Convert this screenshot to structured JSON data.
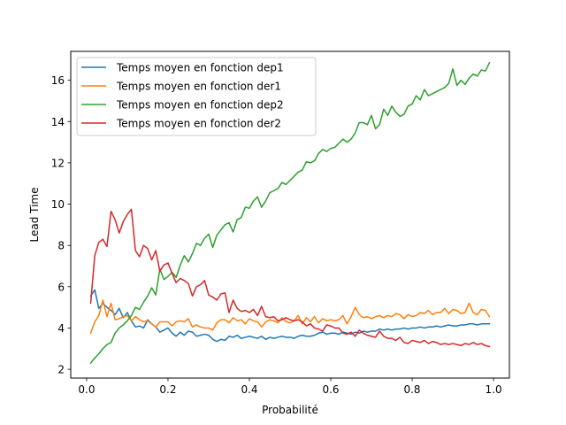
{
  "chart_data": {
    "type": "line",
    "xlabel": "Probabilité",
    "ylabel": "Lead Time",
    "xlim": [
      -0.039,
      1.039
    ],
    "ylim": [
      1.575,
      17.4
    ],
    "xticks": [
      0.0,
      0.2,
      0.4,
      0.6,
      0.8,
      1.0
    ],
    "xtick_labels": [
      "0.0",
      "0.2",
      "0.4",
      "0.6",
      "0.8",
      "1.0"
    ],
    "yticks": [
      2,
      4,
      6,
      8,
      10,
      12,
      14,
      16
    ],
    "ytick_labels": [
      "2",
      "4",
      "6",
      "8",
      "10",
      "12",
      "14",
      "16"
    ],
    "grid": false,
    "legend_position": "upper-left",
    "x": [
      0.01,
      0.02,
      0.03,
      0.04,
      0.05,
      0.06,
      0.07,
      0.08,
      0.09,
      0.1,
      0.11,
      0.12,
      0.13,
      0.14,
      0.15,
      0.16,
      0.17,
      0.18,
      0.19,
      0.2,
      0.21,
      0.22,
      0.23,
      0.24,
      0.25,
      0.26,
      0.27,
      0.28,
      0.29,
      0.3,
      0.31,
      0.32,
      0.33,
      0.34,
      0.35,
      0.36,
      0.37,
      0.38,
      0.39,
      0.4,
      0.41,
      0.42,
      0.43,
      0.44,
      0.45,
      0.46,
      0.47,
      0.48,
      0.49,
      0.5,
      0.51,
      0.52,
      0.53,
      0.54,
      0.55,
      0.56,
      0.57,
      0.58,
      0.59,
      0.6,
      0.61,
      0.62,
      0.63,
      0.64,
      0.65,
      0.66,
      0.67,
      0.68,
      0.69,
      0.7,
      0.71,
      0.72,
      0.73,
      0.74,
      0.75,
      0.76,
      0.77,
      0.78,
      0.79,
      0.8,
      0.81,
      0.82,
      0.83,
      0.84,
      0.85,
      0.86,
      0.87,
      0.88,
      0.89,
      0.9,
      0.91,
      0.92,
      0.93,
      0.94,
      0.95,
      0.96,
      0.97,
      0.98,
      0.99
    ],
    "series": [
      {
        "name": "Temps moyen en fonction dep1",
        "color": "#1f77b4",
        "values": [
          5.55,
          5.85,
          4.95,
          5.2,
          5.0,
          4.85,
          4.65,
          4.95,
          4.5,
          4.75,
          4.35,
          4.05,
          4.1,
          4.0,
          4.4,
          4.2,
          4.05,
          3.8,
          3.9,
          4.0,
          3.75,
          3.6,
          3.8,
          3.65,
          3.85,
          3.8,
          3.6,
          3.65,
          3.7,
          3.65,
          3.45,
          3.35,
          3.45,
          3.4,
          3.6,
          3.55,
          3.65,
          3.5,
          3.55,
          3.6,
          3.55,
          3.5,
          3.6,
          3.45,
          3.55,
          3.5,
          3.55,
          3.6,
          3.55,
          3.55,
          3.5,
          3.6,
          3.65,
          3.6,
          3.6,
          3.65,
          3.75,
          3.8,
          3.7,
          3.75,
          3.75,
          3.7,
          3.8,
          3.75,
          3.7,
          3.8,
          3.75,
          3.85,
          3.8,
          3.85,
          3.85,
          3.95,
          3.9,
          3.95,
          3.9,
          3.95,
          3.95,
          4.0,
          3.95,
          4.0,
          4.0,
          4.05,
          4.0,
          4.05,
          4.05,
          4.1,
          4.05,
          4.1,
          4.15,
          4.1,
          4.1,
          4.15,
          4.15,
          4.2,
          4.2,
          4.15,
          4.2,
          4.2,
          4.2
        ]
      },
      {
        "name": "Temps moyen en fonction der1",
        "color": "#ff7f0e",
        "values": [
          3.75,
          4.3,
          4.6,
          5.35,
          4.55,
          5.2,
          4.4,
          4.45,
          4.55,
          4.6,
          4.35,
          4.55,
          4.4,
          4.3,
          4.35,
          4.2,
          4.05,
          4.3,
          4.3,
          4.3,
          4.1,
          4.3,
          4.35,
          4.3,
          4.45,
          4.05,
          4.15,
          4.05,
          4.0,
          4.0,
          3.9,
          4.25,
          4.4,
          4.4,
          4.25,
          4.5,
          4.35,
          4.4,
          4.2,
          4.45,
          4.35,
          4.3,
          4.05,
          4.3,
          4.4,
          4.35,
          4.25,
          4.5,
          4.3,
          4.25,
          4.35,
          4.6,
          4.2,
          4.5,
          4.3,
          4.55,
          4.25,
          4.45,
          4.35,
          4.4,
          4.35,
          4.4,
          4.6,
          4.2,
          4.55,
          5.0,
          4.65,
          4.5,
          4.55,
          4.45,
          4.55,
          4.6,
          4.5,
          4.6,
          4.55,
          4.7,
          4.65,
          4.45,
          4.65,
          4.55,
          4.6,
          4.75,
          4.7,
          4.85,
          4.65,
          4.75,
          4.75,
          4.95,
          4.7,
          4.9,
          4.85,
          4.7,
          4.75,
          5.2,
          4.75,
          4.65,
          4.9,
          4.85,
          4.55
        ]
      },
      {
        "name": "Temps moyen en fonction dep2",
        "color": "#2ca02c",
        "values": [
          2.3,
          2.55,
          2.75,
          3.0,
          3.2,
          3.3,
          3.75,
          4.0,
          4.15,
          4.35,
          4.6,
          5.0,
          4.9,
          5.25,
          5.55,
          5.95,
          5.6,
          6.85,
          6.35,
          6.5,
          6.7,
          6.45,
          7.05,
          7.5,
          7.2,
          7.6,
          8.1,
          8.0,
          8.35,
          8.55,
          7.9,
          8.5,
          8.75,
          9.0,
          9.1,
          8.65,
          9.25,
          9.35,
          9.85,
          9.8,
          10.15,
          10.35,
          9.85,
          10.15,
          10.55,
          10.65,
          10.75,
          11.05,
          10.95,
          11.15,
          11.35,
          11.55,
          11.65,
          12.05,
          12.0,
          12.1,
          12.45,
          12.65,
          12.55,
          12.7,
          12.75,
          12.95,
          13.15,
          13.0,
          13.15,
          13.45,
          13.95,
          13.95,
          13.85,
          14.3,
          13.65,
          13.85,
          14.6,
          14.3,
          14.75,
          14.45,
          14.25,
          14.35,
          14.75,
          14.85,
          15.25,
          15.05,
          15.55,
          15.25,
          15.35,
          15.45,
          15.55,
          15.65,
          15.85,
          16.55,
          15.75,
          16.0,
          15.8,
          16.1,
          16.3,
          16.2,
          16.5,
          16.45,
          16.85
        ]
      },
      {
        "name": "Temps moyen en fonction der2",
        "color": "#d62728",
        "values": [
          5.2,
          7.5,
          8.15,
          8.3,
          7.95,
          9.65,
          9.25,
          8.6,
          9.15,
          9.5,
          9.75,
          7.75,
          7.45,
          8.0,
          7.85,
          7.3,
          7.75,
          6.75,
          7.05,
          7.15,
          6.65,
          6.2,
          6.4,
          6.3,
          6.15,
          5.55,
          6.0,
          6.1,
          6.3,
          5.6,
          5.5,
          5.35,
          5.65,
          5.7,
          4.75,
          5.35,
          4.95,
          4.8,
          4.85,
          4.75,
          4.9,
          4.6,
          5.05,
          4.55,
          4.5,
          4.55,
          4.35,
          4.4,
          4.5,
          4.4,
          4.35,
          4.4,
          4.3,
          4.1,
          4.2,
          4.0,
          3.95,
          3.85,
          4.15,
          4.1,
          4.0,
          4.0,
          3.75,
          3.7,
          3.8,
          3.6,
          3.9,
          3.75,
          3.65,
          3.6,
          3.55,
          3.85,
          3.6,
          3.5,
          3.5,
          3.4,
          3.55,
          3.3,
          3.25,
          3.4,
          3.35,
          3.3,
          3.4,
          3.25,
          3.35,
          3.3,
          3.2,
          3.25,
          3.2,
          3.25,
          3.2,
          3.15,
          3.25,
          3.2,
          3.3,
          3.2,
          3.25,
          3.15,
          3.1
        ]
      }
    ]
  }
}
